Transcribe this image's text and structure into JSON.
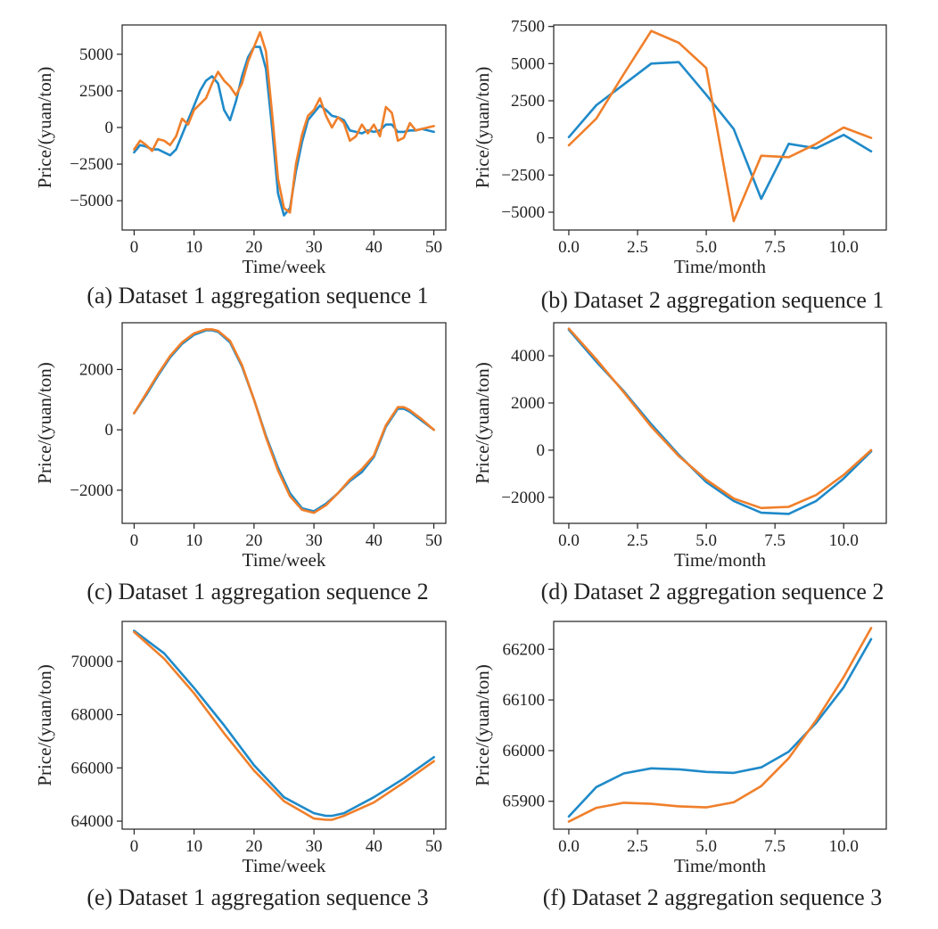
{
  "colors": {
    "series_blue": "#1f8ac9",
    "series_orange": "#f07f2a",
    "axis": "#222222"
  },
  "chart_data": [
    {
      "type": "line",
      "caption": "(a) Dataset 1 aggregation sequence 1",
      "xlabel": "Time/week",
      "ylabel": "Price/(yuan/ton)",
      "xlim": [
        -2,
        52
      ],
      "ylim": [
        -7000,
        7000
      ],
      "xticks": [
        0,
        10,
        20,
        30,
        40,
        50
      ],
      "xtick_labels": [
        "0",
        "10",
        "20",
        "30",
        "40",
        "50"
      ],
      "yticks": [
        -5000,
        -2500,
        0,
        2500,
        5000
      ],
      "ytick_labels": [
        "−5000",
        "−2500",
        "0",
        "2500",
        "5000"
      ],
      "x": [
        0,
        1,
        2,
        3,
        4,
        5,
        6,
        7,
        8,
        9,
        10,
        11,
        12,
        13,
        14,
        15,
        16,
        17,
        18,
        19,
        20,
        21,
        22,
        23,
        24,
        25,
        26,
        27,
        28,
        29,
        30,
        31,
        32,
        33,
        34,
        35,
        36,
        37,
        38,
        39,
        40,
        41,
        42,
        43,
        44,
        45,
        46,
        47,
        48,
        49,
        50
      ],
      "series": [
        {
          "name": "blue",
          "values": [
            -1700,
            -1200,
            -1300,
            -1500,
            -1500,
            -1700,
            -1900,
            -1500,
            -500,
            500,
            1500,
            2500,
            3200,
            3500,
            3000,
            1200,
            500,
            1800,
            3500,
            4800,
            5500,
            5500,
            4000,
            0,
            -4500,
            -6000,
            -5500,
            -3000,
            -1000,
            500,
            1000,
            1500,
            1200,
            800,
            700,
            500,
            -200,
            -300,
            -400,
            -200,
            -300,
            -200,
            200,
            200,
            -300,
            -300,
            -200,
            -200,
            -100,
            -200,
            -300
          ]
        },
        {
          "name": "orange",
          "values": [
            -1500,
            -900,
            -1200,
            -1600,
            -800,
            -900,
            -1200,
            -600,
            600,
            200,
            1200,
            1600,
            2000,
            3000,
            3800,
            3200,
            2800,
            2200,
            3000,
            4500,
            5500,
            6500,
            5200,
            1000,
            -3500,
            -5500,
            -5800,
            -2500,
            -500,
            800,
            1200,
            2000,
            800,
            0,
            700,
            300,
            -900,
            -600,
            200,
            -400,
            200,
            -600,
            1400,
            1000,
            -900,
            -700,
            300,
            -200,
            -100,
            0,
            100
          ]
        }
      ]
    },
    {
      "type": "line",
      "caption": "(b) Dataset 2 aggregation sequence 1",
      "xlabel": "Time/month",
      "ylabel": "Price/(yuan/ton)",
      "xlim": [
        -0.55,
        11.55
      ],
      "ylim": [
        -6200,
        7600
      ],
      "xticks": [
        0,
        2.5,
        5,
        7.5,
        10
      ],
      "xtick_labels": [
        "0.0",
        "2.5",
        "5.0",
        "7.5",
        "10.0"
      ],
      "yticks": [
        -5000,
        -2500,
        0,
        2500,
        5000,
        7500
      ],
      "ytick_labels": [
        "−5000",
        "−2500",
        "0",
        "2500",
        "5000",
        "7500"
      ],
      "x": [
        0,
        1,
        2,
        3,
        4,
        5,
        6,
        7,
        8,
        9,
        10,
        11
      ],
      "series": [
        {
          "name": "blue",
          "values": [
            50,
            2200,
            3600,
            5000,
            5100,
            2900,
            600,
            -4100,
            -400,
            -700,
            200,
            -900
          ]
        },
        {
          "name": "orange",
          "values": [
            -500,
            1300,
            4300,
            7200,
            6400,
            4700,
            -5600,
            -1200,
            -1300,
            -400,
            700,
            0
          ]
        }
      ]
    },
    {
      "type": "line",
      "caption": "(c) Dataset 1 aggregation sequence 2",
      "xlabel": "Time/week",
      "ylabel": "Price/(yuan/ton)",
      "xlim": [
        -2,
        52
      ],
      "ylim": [
        -3100,
        3550
      ],
      "xticks": [
        0,
        10,
        20,
        30,
        40,
        50
      ],
      "xtick_labels": [
        "0",
        "10",
        "20",
        "30",
        "40",
        "50"
      ],
      "yticks": [
        -2000,
        0,
        2000
      ],
      "ytick_labels": [
        "−2000",
        "0",
        "2000"
      ],
      "x": [
        0,
        2,
        4,
        6,
        8,
        10,
        12,
        13,
        14,
        16,
        18,
        20,
        22,
        24,
        26,
        28,
        30,
        32,
        34,
        36,
        38,
        40,
        42,
        44,
        45,
        46,
        48,
        50
      ],
      "series": [
        {
          "name": "blue",
          "values": [
            550,
            1150,
            1800,
            2400,
            2850,
            3150,
            3300,
            3300,
            3250,
            2900,
            2100,
            1000,
            -200,
            -1250,
            -2100,
            -2600,
            -2700,
            -2450,
            -2100,
            -1700,
            -1400,
            -900,
            100,
            700,
            700,
            600,
            300,
            0
          ]
        },
        {
          "name": "orange",
          "values": [
            550,
            1200,
            1850,
            2450,
            2900,
            3200,
            3330,
            3330,
            3280,
            2950,
            2150,
            1000,
            -250,
            -1350,
            -2200,
            -2650,
            -2750,
            -2500,
            -2100,
            -1650,
            -1300,
            -850,
            150,
            750,
            750,
            650,
            350,
            0
          ]
        }
      ]
    },
    {
      "type": "line",
      "caption": "(d) Dataset 2 aggregation sequence 2",
      "xlabel": "Time/month",
      "ylabel": "Price/(yuan/ton)",
      "xlim": [
        -0.55,
        11.55
      ],
      "ylim": [
        -3100,
        5400
      ],
      "xticks": [
        0,
        2.5,
        5,
        7.5,
        10
      ],
      "xtick_labels": [
        "0.0",
        "2.5",
        "5.0",
        "7.5",
        "10.0"
      ],
      "yticks": [
        -2000,
        0,
        2000,
        4000
      ],
      "ytick_labels": [
        "−2000",
        "0",
        "2000",
        "4000"
      ],
      "x": [
        0,
        1,
        2,
        3,
        4,
        5,
        6,
        7,
        8,
        9,
        10,
        11
      ],
      "series": [
        {
          "name": "blue",
          "values": [
            5100,
            3750,
            2500,
            1100,
            -200,
            -1350,
            -2150,
            -2650,
            -2700,
            -2150,
            -1200,
            -50
          ]
        },
        {
          "name": "orange",
          "values": [
            5150,
            3850,
            2450,
            1000,
            -250,
            -1250,
            -2050,
            -2450,
            -2400,
            -1900,
            -1050,
            0
          ]
        }
      ]
    },
    {
      "type": "line",
      "caption": "(e) Dataset 1 aggregation sequence 3",
      "xlabel": "Time/week",
      "ylabel": "Price/(yuan/ton)",
      "xlim": [
        -2,
        52
      ],
      "ylim": [
        63700,
        71500
      ],
      "xticks": [
        0,
        10,
        20,
        30,
        40,
        50
      ],
      "xtick_labels": [
        "0",
        "10",
        "20",
        "30",
        "40",
        "50"
      ],
      "yticks": [
        64000,
        66000,
        68000,
        70000
      ],
      "ytick_labels": [
        "64000",
        "66000",
        "68000",
        "70000"
      ],
      "x": [
        0,
        5,
        10,
        15,
        20,
        25,
        30,
        32,
        33,
        35,
        40,
        45,
        50
      ],
      "series": [
        {
          "name": "blue",
          "values": [
            71150,
            70300,
            69000,
            67600,
            66100,
            64900,
            64300,
            64200,
            64200,
            64300,
            64900,
            65600,
            66400
          ]
        },
        {
          "name": "orange",
          "values": [
            71100,
            70100,
            68800,
            67300,
            65900,
            64750,
            64100,
            64050,
            64050,
            64200,
            64700,
            65450,
            66250
          ]
        }
      ]
    },
    {
      "type": "line",
      "caption": "(f) Dataset 2 aggregation sequence 3",
      "xlabel": "Time/month",
      "ylabel": "Price/(yuan/ton)",
      "xlim": [
        -0.55,
        11.55
      ],
      "ylim": [
        65845,
        66255
      ],
      "xticks": [
        0,
        2.5,
        5,
        7.5,
        10
      ],
      "xtick_labels": [
        "0.0",
        "2.5",
        "5.0",
        "7.5",
        "10.0"
      ],
      "yticks": [
        65900,
        66000,
        66100,
        66200
      ],
      "ytick_labels": [
        "65900",
        "66000",
        "66100",
        "66200"
      ],
      "x": [
        0,
        1,
        2,
        3,
        4,
        5,
        6,
        7,
        8,
        9,
        10,
        11
      ],
      "series": [
        {
          "name": "blue",
          "values": [
            65870,
            65928,
            65955,
            65965,
            65963,
            65958,
            65956,
            65967,
            65998,
            66055,
            66125,
            66220
          ]
        },
        {
          "name": "orange",
          "values": [
            65860,
            65887,
            65897,
            65895,
            65890,
            65888,
            65898,
            65930,
            65985,
            66060,
            66145,
            66242
          ]
        }
      ]
    }
  ]
}
